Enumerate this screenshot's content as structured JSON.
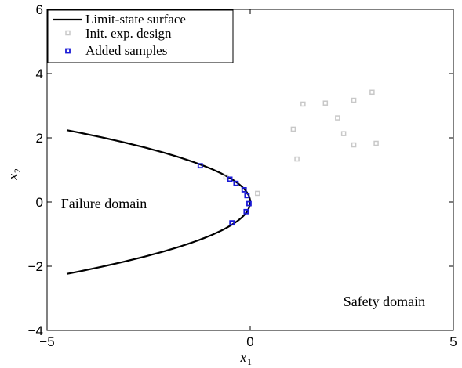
{
  "chart_data": {
    "type": "scatter",
    "title": "",
    "xlabel": "x",
    "xlabel_sub": "1",
    "ylabel": "x",
    "ylabel_sub": "2",
    "xlim": [
      -5,
      5
    ],
    "ylim": [
      -4,
      6
    ],
    "xticks": [
      -5,
      0,
      5
    ],
    "yticks": [
      -4,
      -2,
      0,
      2,
      4,
      6
    ],
    "xtick_labels": [
      "−5",
      "0",
      "5"
    ],
    "ytick_labels": [
      "−4",
      "−2",
      "0",
      "2",
      "4",
      "6"
    ],
    "grid": false,
    "legend_position": "top-left",
    "series": [
      {
        "name": "Limit-state surface",
        "kind": "line",
        "color": "#000000",
        "equation": "x1 = -0.9 * x2^2",
        "x2_range": [
          -2.24,
          2.24
        ]
      },
      {
        "name": "Init. exp. design",
        "kind": "marker",
        "marker": "square",
        "color": "#c8c8c8",
        "points": [
          [
            0.18,
            0.27
          ],
          [
            -0.6,
            0.78
          ],
          [
            1.06,
            2.27
          ],
          [
            1.15,
            1.34
          ],
          [
            1.3,
            3.05
          ],
          [
            1.85,
            3.08
          ],
          [
            2.15,
            2.62
          ],
          [
            2.3,
            2.13
          ],
          [
            2.55,
            3.17
          ],
          [
            2.55,
            1.78
          ],
          [
            3.0,
            3.42
          ],
          [
            3.1,
            1.83
          ]
        ]
      },
      {
        "name": "Added samples",
        "kind": "marker",
        "marker": "square",
        "color": "#1a1ad6",
        "points": [
          [
            -1.23,
            1.13
          ],
          [
            -0.5,
            0.71
          ],
          [
            -0.35,
            0.58
          ],
          [
            -0.15,
            0.38
          ],
          [
            -0.08,
            0.2
          ],
          [
            -0.03,
            -0.05
          ],
          [
            -0.1,
            -0.3
          ],
          [
            -0.45,
            -0.65
          ]
        ]
      }
    ],
    "annotations": [
      {
        "text": "Failure domain",
        "x": -3.6,
        "y": -0.05
      },
      {
        "text": "Safety domain",
        "x": 3.3,
        "y": -3.1
      }
    ]
  }
}
